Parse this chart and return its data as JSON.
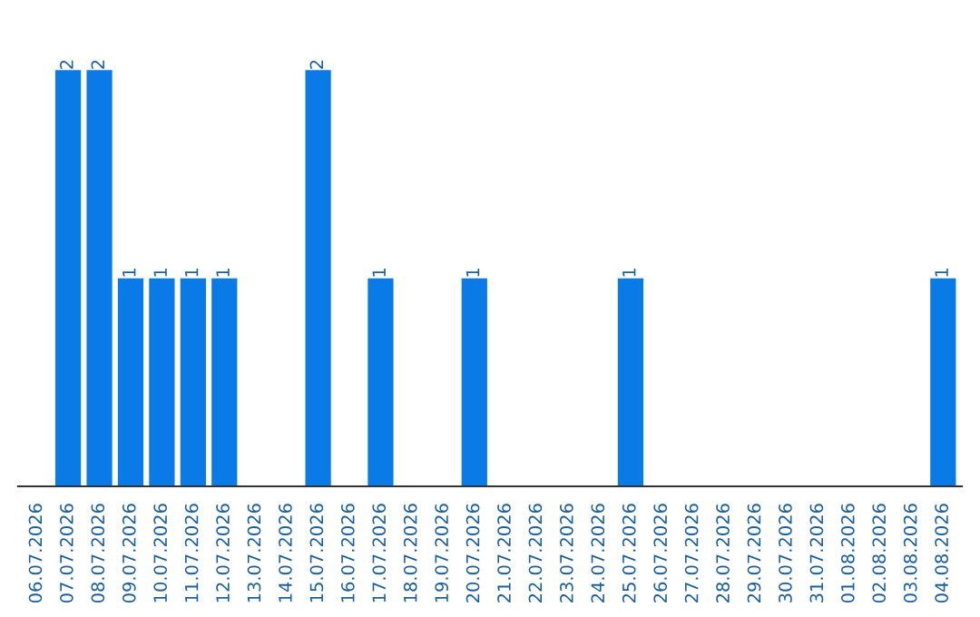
{
  "chart_data": {
    "type": "bar",
    "categories": [
      "06.07.2026",
      "07.07.2026",
      "08.07.2026",
      "09.07.2026",
      "10.07.2026",
      "11.07.2026",
      "12.07.2026",
      "13.07.2026",
      "14.07.2026",
      "15.07.2026",
      "16.07.2026",
      "17.07.2026",
      "18.07.2026",
      "19.07.2026",
      "20.07.2026",
      "21.07.2026",
      "22.07.2026",
      "23.07.2026",
      "24.07.2026",
      "25.07.2026",
      "26.07.2026",
      "27.07.2026",
      "28.07.2026",
      "29.07.2026",
      "30.07.2026",
      "31.07.2026",
      "01.08.2026",
      "02.08.2026",
      "03.08.2026",
      "04.08.2026"
    ],
    "values": [
      0,
      2,
      2,
      1,
      1,
      1,
      1,
      0,
      0,
      2,
      0,
      1,
      0,
      0,
      1,
      0,
      0,
      0,
      0,
      1,
      0,
      0,
      0,
      0,
      0,
      0,
      0,
      0,
      0,
      1
    ],
    "value_labels": [
      null,
      "2",
      "2",
      "1",
      "1",
      "1",
      "1",
      null,
      null,
      "2",
      null,
      "1",
      null,
      null,
      "1",
      null,
      null,
      null,
      null,
      "1",
      null,
      null,
      null,
      null,
      null,
      null,
      null,
      null,
      null,
      "1"
    ],
    "color": "#0a7be6",
    "grid": false,
    "legend": false
  }
}
